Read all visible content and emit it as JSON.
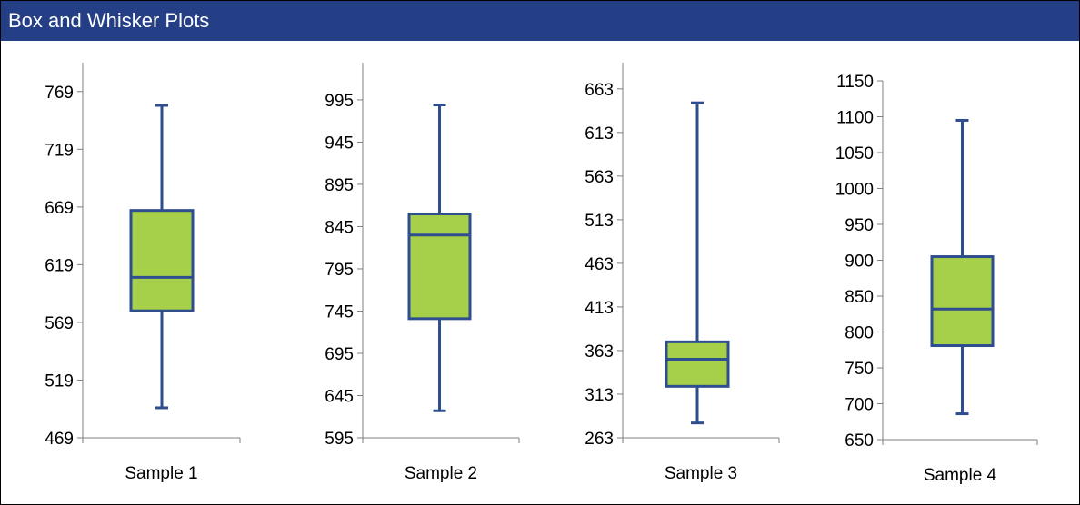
{
  "header": {
    "title": "Box and Whisker Plots"
  },
  "colors": {
    "title_bar": "#253F86",
    "box_fill": "#A6CF4A",
    "box_stroke": "#2E4E8F",
    "axis": "#7F7F7F"
  },
  "chart_data": [
    {
      "type": "box",
      "category": "Sample 1",
      "ylim": [
        469,
        794
      ],
      "yticks": [
        469,
        519,
        569,
        619,
        669,
        719,
        769
      ],
      "whisker_low": 495,
      "q1": 579,
      "median": 608,
      "q3": 666,
      "whisker_high": 757
    },
    {
      "type": "box",
      "category": "Sample 2",
      "ylim": [
        595,
        1039
      ],
      "yticks": [
        595,
        645,
        695,
        745,
        795,
        845,
        895,
        945,
        995
      ],
      "whisker_low": 627,
      "q1": 736,
      "median": 835,
      "q3": 860,
      "whisker_high": 989
    },
    {
      "type": "box",
      "category": "Sample 3",
      "ylim": [
        263,
        693
      ],
      "yticks": [
        263,
        313,
        363,
        413,
        463,
        513,
        563,
        613,
        663
      ],
      "whisker_low": 280,
      "q1": 322,
      "median": 353,
      "q3": 373,
      "whisker_high": 647
    },
    {
      "type": "box",
      "category": "Sample 4",
      "ylim": [
        650,
        1150
      ],
      "yticks": [
        650,
        700,
        750,
        800,
        850,
        900,
        950,
        1000,
        1050,
        1100,
        1150
      ],
      "whisker_low": 686,
      "q1": 781,
      "median": 832,
      "q3": 905,
      "whisker_high": 1095
    }
  ]
}
